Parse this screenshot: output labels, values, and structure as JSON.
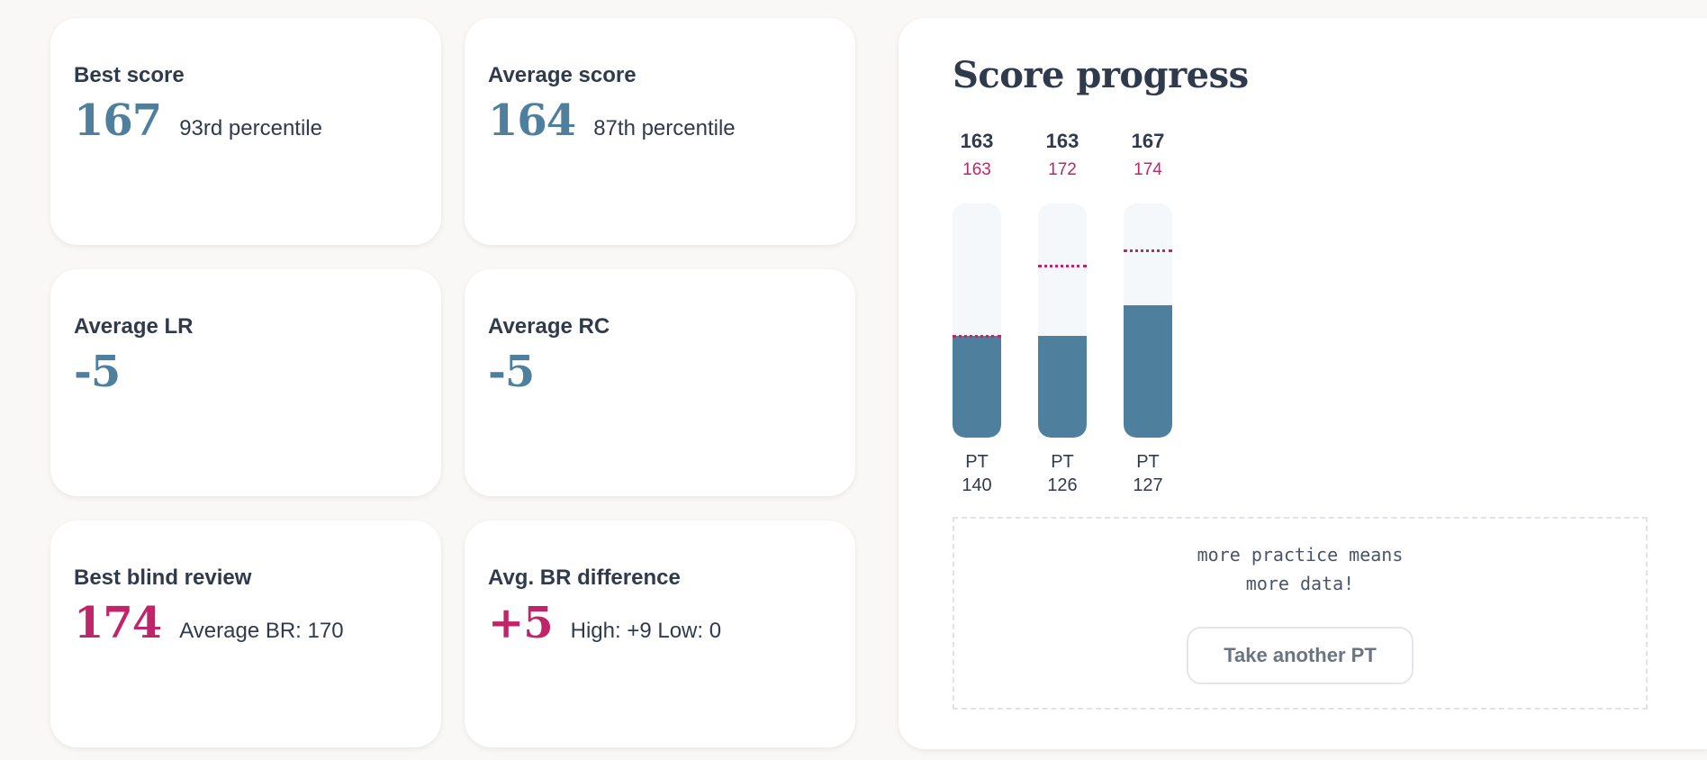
{
  "stats": {
    "best_score": {
      "title": "Best score",
      "value": "167",
      "sub": "93rd percentile"
    },
    "average_score": {
      "title": "Average score",
      "value": "164",
      "sub": "87th percentile"
    },
    "average_lr": {
      "title": "Average LR",
      "value": "-5",
      "sub": ""
    },
    "average_rc": {
      "title": "Average RC",
      "value": "-5",
      "sub": ""
    },
    "best_blind_review": {
      "title": "Best blind review",
      "value": "174",
      "sub": "Average BR: 170"
    },
    "avg_br_difference": {
      "title": "Avg. BR difference",
      "value": "+5",
      "sub": "High: +9 Low: 0"
    }
  },
  "progress": {
    "title": "Score progress",
    "tests": [
      {
        "score": "163",
        "br": "163",
        "label_top": "PT",
        "label_bottom": "140"
      },
      {
        "score": "163",
        "br": "172",
        "label_top": "PT",
        "label_bottom": "126"
      },
      {
        "score": "167",
        "br": "174",
        "label_top": "PT",
        "label_bottom": "127"
      }
    ],
    "encourage_line1": "more practice means",
    "encourage_line2": "more data!",
    "button_label": "Take another PT"
  },
  "chart_data": {
    "type": "bar",
    "categories": [
      "PT 140",
      "PT 126",
      "PT 127"
    ],
    "series": [
      {
        "name": "",
        "values": [
          163,
          163,
          167
        ]
      },
      {
        "name": "",
        "values": [
          163,
          172,
          174
        ]
      }
    ]
  },
  "colors": {
    "accent_blue": "#4e7f9c",
    "accent_pink": "#c0256a",
    "background": "#f9f8f6"
  }
}
